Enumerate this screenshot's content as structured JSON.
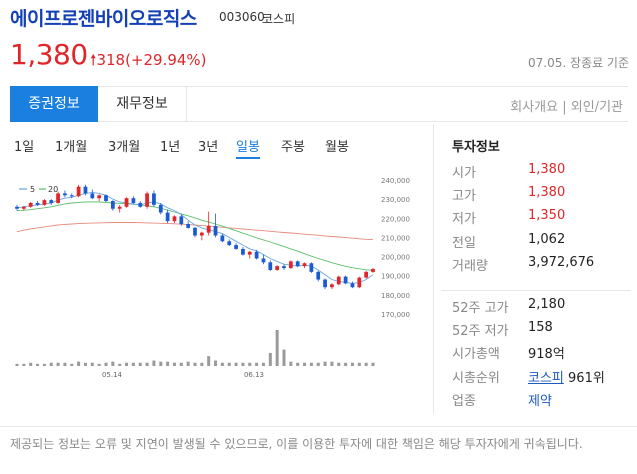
{
  "header": {
    "name": "에이프로젠바이오로직스",
    "code": "003060",
    "market": "코스피",
    "price": "1,380",
    "change": "318(+29.94%)",
    "date": "07.05. 장종료 기준"
  },
  "tabs": [
    "증권정보",
    "재무정보"
  ],
  "company_links": [
    "회사개요",
    "외인/기관"
  ],
  "periods": [
    "1일",
    "1개월",
    "3개월",
    "1년",
    "3년",
    "일봉",
    "주봉",
    "월봉"
  ],
  "active_period": "일봉",
  "chart_data": {
    "type": "candlestick",
    "legend": [
      "5",
      "20"
    ],
    "y_ticks": [
      "240,000",
      "230,000",
      "220,000",
      "210,000",
      "200,000",
      "190,000",
      "180,000",
      "170,000"
    ],
    "x_ticks": [
      "05.14",
      "06.13"
    ],
    "ylim": [
      170000,
      240000
    ],
    "candles": [
      [
        226000,
        227000,
        224000,
        225000
      ],
      [
        225000,
        226500,
        224000,
        226000
      ],
      [
        226000,
        228500,
        225500,
        228000
      ],
      [
        228000,
        229000,
        226500,
        227000
      ],
      [
        227000,
        230000,
        226500,
        229500
      ],
      [
        229500,
        230000,
        227000,
        228000
      ],
      [
        228000,
        234000,
        227500,
        233000
      ],
      [
        233000,
        234500,
        231000,
        232000
      ],
      [
        232000,
        233000,
        230500,
        231500
      ],
      [
        231500,
        237500,
        231000,
        236500
      ],
      [
        236500,
        237500,
        232000,
        233000
      ],
      [
        233000,
        235000,
        230000,
        230500
      ],
      [
        230500,
        232500,
        229000,
        232000
      ],
      [
        232000,
        232500,
        228500,
        229000
      ],
      [
        229000,
        229500,
        224000,
        225000
      ],
      [
        225000,
        227000,
        223000,
        226000
      ],
      [
        226000,
        231000,
        225500,
        230500
      ],
      [
        230500,
        231500,
        227500,
        228000
      ],
      [
        228000,
        229000,
        225500,
        226000
      ],
      [
        226000,
        234000,
        225000,
        233000
      ],
      [
        233000,
        234500,
        226000,
        227000
      ],
      [
        227000,
        228000,
        222000,
        223000
      ],
      [
        223000,
        224500,
        217500,
        218500
      ],
      [
        218500,
        221500,
        217500,
        221000
      ],
      [
        221000,
        222000,
        216000,
        217000
      ],
      [
        217000,
        218500,
        214500,
        215000
      ],
      [
        215000,
        215500,
        210000,
        211000
      ],
      [
        211000,
        213000,
        208500,
        212500
      ],
      [
        212500,
        223500,
        211000,
        216000
      ],
      [
        216000,
        222500,
        210000,
        211000
      ],
      [
        211000,
        212000,
        207500,
        208000
      ],
      [
        208000,
        209000,
        205500,
        206000
      ],
      [
        206000,
        207000,
        203500,
        204000
      ],
      [
        204000,
        205000,
        200500,
        201000
      ],
      [
        201000,
        203000,
        199000,
        202500
      ],
      [
        202500,
        203500,
        198500,
        199000
      ],
      [
        199000,
        201000,
        196000,
        197000
      ],
      [
        197000,
        198000,
        192500,
        193000
      ],
      [
        193000,
        195500,
        192500,
        195000
      ],
      [
        195000,
        196000,
        193000,
        194000
      ],
      [
        194000,
        198000,
        193500,
        197500
      ],
      [
        197500,
        198000,
        194500,
        195000
      ],
      [
        195000,
        197000,
        194000,
        196500
      ],
      [
        196500,
        197000,
        191500,
        192000
      ],
      [
        192000,
        192500,
        187000,
        188000
      ],
      [
        188000,
        188500,
        183000,
        184000
      ],
      [
        184000,
        186000,
        183000,
        185500
      ],
      [
        185500,
        190000,
        185000,
        189500
      ],
      [
        189500,
        190000,
        185500,
        186000
      ],
      [
        186000,
        187000,
        183500,
        184000
      ],
      [
        184000,
        189500,
        183500,
        189000
      ],
      [
        189000,
        192500,
        188500,
        192000
      ],
      [
        192000,
        194000,
        191500,
        193500
      ]
    ],
    "ma5": [
      225500,
      226000,
      226500,
      227000,
      227500,
      228000,
      229500,
      230500,
      231000,
      232000,
      233000,
      233500,
      233000,
      232000,
      230000,
      228500,
      228000,
      227500,
      227000,
      228000,
      228500,
      227500,
      225500,
      224000,
      222000,
      219000,
      216500,
      215000,
      214000,
      213000,
      212000,
      210000,
      208000,
      206000,
      204000,
      203000,
      201000,
      199000,
      197500,
      196000,
      195500,
      195000,
      195500,
      195000,
      193000,
      190500,
      188000,
      187000,
      186500,
      186000,
      186500,
      188000,
      190500
    ],
    "ma20": [
      224000,
      224200,
      224500,
      225000,
      225500,
      226000,
      226800,
      227500,
      228000,
      228300,
      228500,
      228600,
      228500,
      228300,
      228000,
      227800,
      227600,
      227300,
      227000,
      226500,
      226000,
      225200,
      224300,
      223300,
      222300,
      221300,
      220200,
      219000,
      218000,
      217000,
      215900,
      214700,
      213500,
      212200,
      211000,
      209800,
      208700,
      207600,
      206400,
      205200,
      204000,
      202800,
      201500,
      200200,
      199000,
      197900,
      196800,
      195800,
      194900,
      194200,
      193600,
      193100,
      192800
    ],
    "ma60": [
      213000,
      213800,
      214500,
      215000,
      215500,
      216000,
      216500,
      216800,
      217000,
      217200,
      217400,
      217500,
      217600,
      217700,
      217800,
      217800,
      217800,
      217800,
      217700,
      217600,
      217500,
      217400,
      217300,
      217100,
      216900,
      216700,
      216500,
      216200,
      215900,
      215600,
      215300,
      215000,
      214700,
      214400,
      214100,
      213800,
      213500,
      213200,
      212900,
      212600,
      212300,
      212000,
      211700,
      211400,
      211100,
      210800,
      210500,
      210200,
      209900,
      209600,
      209300,
      209000,
      208800
    ],
    "volume": [
      2,
      2,
      3,
      2,
      2,
      3,
      3,
      3,
      2,
      4,
      3,
      3,
      2,
      3,
      4,
      2,
      3,
      3,
      3,
      3,
      5,
      4,
      4,
      3,
      3,
      4,
      3,
      3,
      9,
      5,
      3,
      3,
      3,
      3,
      3,
      3,
      3,
      12,
      33,
      15,
      4,
      3,
      3,
      3,
      3,
      4,
      4,
      3,
      3,
      3,
      3,
      3,
      3
    ]
  },
  "investment_info": {
    "title": "투자정보",
    "rows": [
      {
        "label": "시가",
        "value": "1,380",
        "red": true
      },
      {
        "label": "고가",
        "value": "1,380",
        "red": true
      },
      {
        "label": "저가",
        "value": "1,350",
        "red": true
      },
      {
        "label": "전일",
        "value": "1,062",
        "red": false
      },
      {
        "label": "거래량",
        "value": "3,972,676",
        "red": false
      }
    ],
    "rows2": [
      {
        "label": "52주 고가",
        "value": "2,180"
      },
      {
        "label": "52주 저가",
        "value": "158"
      },
      {
        "label": "시가총액",
        "value": "918억"
      }
    ],
    "rank_label": "시총순위",
    "rank_market": "코스피",
    "rank_value": "961위",
    "industry_label": "업종",
    "industry_value": "제약"
  },
  "footer": "제공되는 정보는 오류 및 지연이 발생될 수 있으므로, 이를 이용한 투자에 대한 책임은 해당 투자자에게 귀속됩니다.",
  "colors": {
    "up": "#e0262a",
    "down": "#1b5bd0",
    "accent": "#1b7fe0",
    "ma5": "#6aa7e0",
    "ma20": "#5ebf6a",
    "ma60": "#e88a7a"
  }
}
